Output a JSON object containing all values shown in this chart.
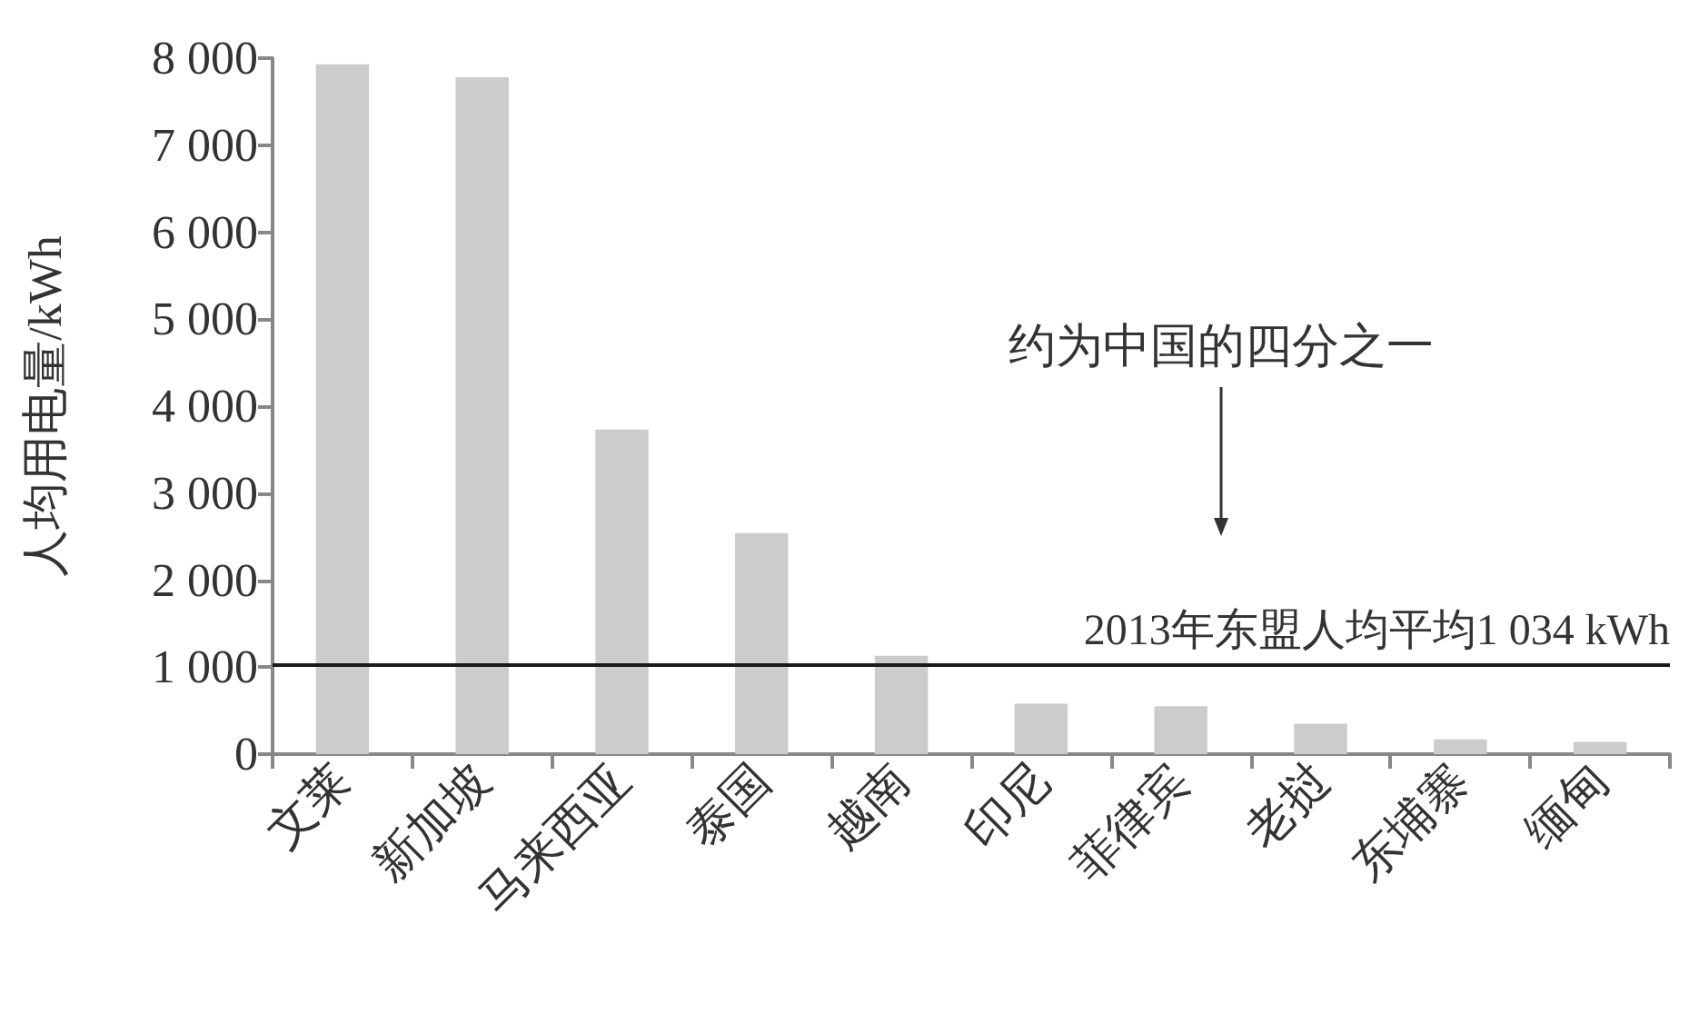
{
  "chart_data": {
    "type": "bar",
    "ylabel": "人均用电量/kWh",
    "categories": [
      "文莱",
      "新加坡",
      "马来西亚",
      "泰国",
      "越南",
      "印尼",
      "菲律宾",
      "老挝",
      "东埔寨",
      "缅甸"
    ],
    "values": [
      7930,
      7780,
      3730,
      2540,
      1130,
      580,
      550,
      350,
      170,
      140
    ],
    "color": "#cccccc",
    "ylim": [
      0,
      8000
    ],
    "yticks": [
      {
        "value": 0,
        "label": "0"
      },
      {
        "value": 1000,
        "label": "1 000"
      },
      {
        "value": 2000,
        "label": "2 000"
      },
      {
        "value": 3000,
        "label": "3 000"
      },
      {
        "value": 4000,
        "label": "4 000"
      },
      {
        "value": 5000,
        "label": "5 000"
      },
      {
        "value": 6000,
        "label": "6 000"
      },
      {
        "value": 7000,
        "label": "7 000"
      },
      {
        "value": 8000,
        "label": "8 000"
      }
    ],
    "ref_lines": [
      {
        "axis": "y",
        "value": 1034,
        "label": "2013年东盟人均平均1 034 kWh",
        "color": "#1a1a1a"
      }
    ],
    "annotations": [
      "约为中国的四分之一"
    ]
  }
}
